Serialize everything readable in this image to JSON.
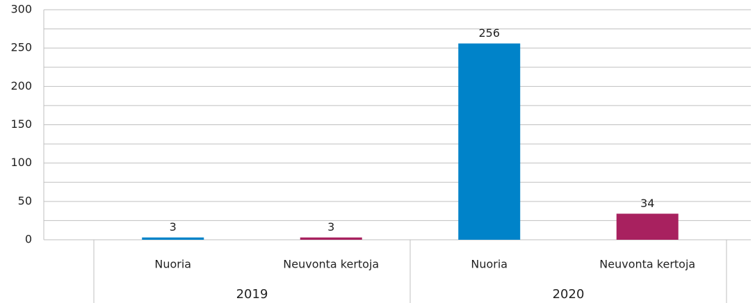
{
  "chart_data": {
    "type": "bar",
    "categories": [
      "Nuoria",
      "Neuvonta kertoja",
      "Nuoria",
      "Neuvonta kertoja"
    ],
    "groups": [
      "2019",
      "2020"
    ],
    "values": [
      3,
      3,
      256,
      34
    ],
    "colors": [
      "#0083c9",
      "#a8215f",
      "#0083c9",
      "#a8215f"
    ],
    "ylim": [
      0,
      300
    ],
    "yticks": [
      0,
      50,
      100,
      150,
      200,
      250,
      300
    ],
    "minor_yticks": [
      25,
      75,
      125,
      175,
      225,
      275
    ],
    "grid": true
  }
}
